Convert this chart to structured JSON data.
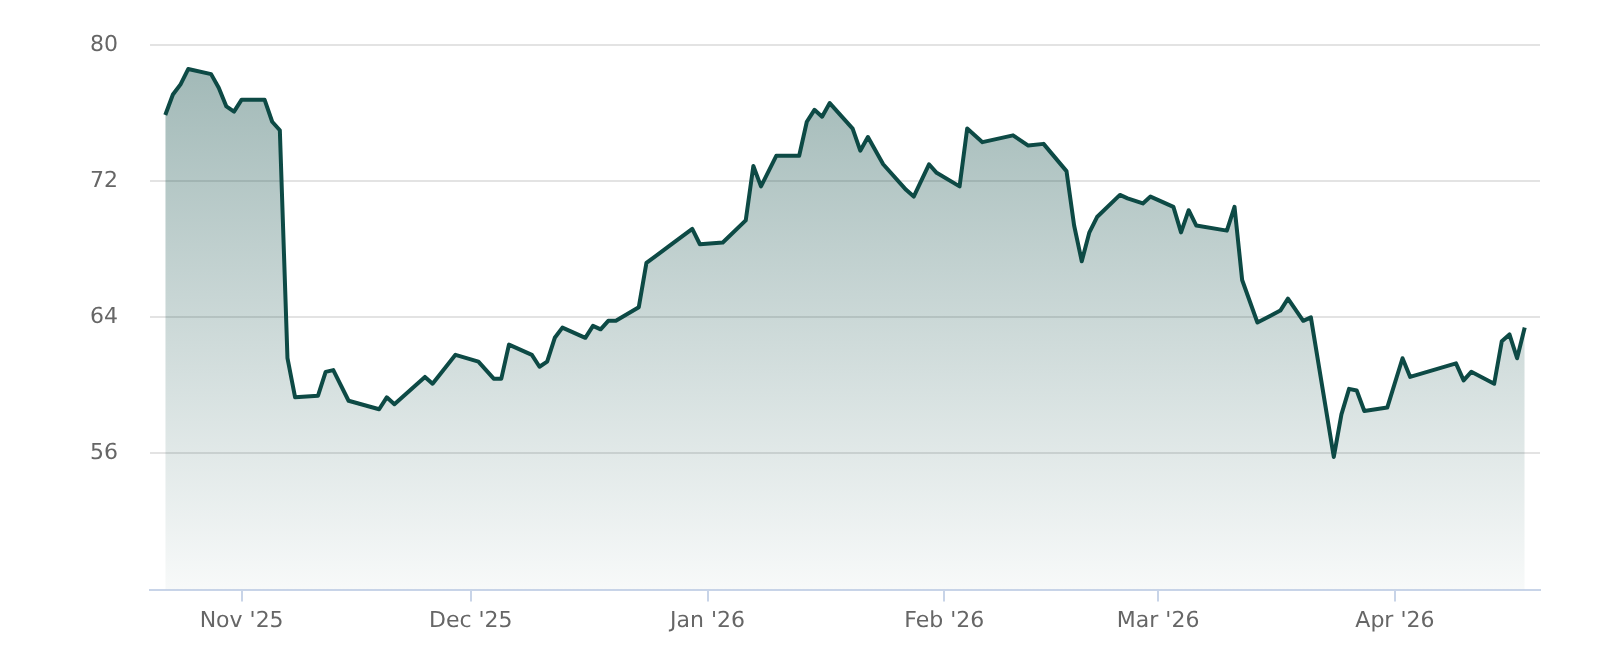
{
  "chart_data": {
    "type": "area",
    "x": [
      "2025-10-22",
      "2025-10-23",
      "2025-10-24",
      "2025-10-25",
      "2025-10-28",
      "2025-10-29",
      "2025-10-30",
      "2025-10-31",
      "2025-11-01",
      "2025-11-04",
      "2025-11-05",
      "2025-11-06",
      "2025-11-07",
      "2025-11-08",
      "2025-11-11",
      "2025-11-12",
      "2025-11-13",
      "2025-11-15",
      "2025-11-19",
      "2025-11-20",
      "2025-11-21",
      "2025-11-25",
      "2025-11-26",
      "2025-11-29",
      "2025-12-02",
      "2025-12-04",
      "2025-12-05",
      "2025-12-06",
      "2025-12-09",
      "2025-12-10",
      "2025-12-11",
      "2025-12-12",
      "2025-12-13",
      "2025-12-16",
      "2025-12-17",
      "2025-12-18",
      "2025-12-19",
      "2025-12-20",
      "2025-12-23",
      "2025-12-24",
      "2025-12-27",
      "2025-12-30",
      "2025-12-31",
      "2026-01-03",
      "2026-01-06",
      "2026-01-07",
      "2026-01-08",
      "2026-01-10",
      "2026-01-13",
      "2026-01-14",
      "2026-01-15",
      "2026-01-16",
      "2026-01-17",
      "2026-01-20",
      "2026-01-21",
      "2026-01-22",
      "2026-01-24",
      "2026-01-27",
      "2026-01-28",
      "2026-01-30",
      "2026-01-31",
      "2026-02-03",
      "2026-02-04",
      "2026-02-06",
      "2026-02-10",
      "2026-02-12",
      "2026-02-14",
      "2026-02-17",
      "2026-02-18",
      "2026-02-19",
      "2026-02-20",
      "2026-02-21",
      "2026-02-24",
      "2026-02-25",
      "2026-02-27",
      "2026-02-28",
      "2026-03-03",
      "2026-03-04",
      "2026-03-05",
      "2026-03-06",
      "2026-03-10",
      "2026-03-11",
      "2026-03-12",
      "2026-03-14",
      "2026-03-17",
      "2026-03-18",
      "2026-03-20",
      "2026-03-21",
      "2026-03-24",
      "2026-03-25",
      "2026-03-26",
      "2026-03-27",
      "2026-03-28",
      "2026-03-31",
      "2026-04-02",
      "2026-04-03",
      "2026-04-09",
      "2026-04-10",
      "2026-04-11",
      "2026-04-14",
      "2026-04-15",
      "2026-04-16",
      "2026-04-17",
      "2026-04-18"
    ],
    "series": [
      {
        "color": "#0d4a45",
        "values": [
          75.9,
          77.1,
          77.7,
          78.6,
          78.3,
          77.5,
          76.4,
          76.1,
          76.8,
          76.8,
          75.5,
          75.0,
          61.6,
          59.3,
          59.4,
          60.8,
          60.9,
          59.1,
          58.6,
          59.3,
          58.9,
          60.5,
          60.1,
          61.8,
          61.4,
          60.4,
          60.4,
          62.4,
          61.8,
          61.1,
          61.4,
          62.8,
          63.4,
          62.8,
          63.5,
          63.3,
          63.8,
          63.8,
          64.6,
          67.2,
          68.2,
          69.2,
          68.3,
          68.4,
          69.7,
          72.9,
          71.7,
          73.5,
          73.5,
          75.5,
          76.2,
          75.8,
          76.6,
          75.1,
          73.8,
          74.6,
          73.0,
          71.5,
          71.1,
          73.0,
          72.5,
          71.7,
          75.1,
          74.3,
          74.7,
          74.1,
          74.2,
          72.6,
          69.4,
          67.3,
          69.0,
          69.9,
          71.2,
          71.0,
          70.7,
          71.1,
          70.5,
          69.0,
          70.3,
          69.4,
          69.1,
          70.5,
          66.2,
          63.7,
          64.4,
          65.1,
          63.8,
          64.0,
          55.8,
          58.3,
          59.8,
          59.7,
          58.5,
          58.7,
          61.6,
          60.5,
          61.3,
          60.3,
          60.8,
          60.1,
          62.6,
          63.0,
          61.6,
          63.4
        ]
      }
    ],
    "xlim": [
      "2025-10-20",
      "2026-04-20"
    ],
    "xticks": [
      {
        "value": "2025-11-01",
        "label": "Nov '25"
      },
      {
        "value": "2025-12-01",
        "label": "Dec '25"
      },
      {
        "value": "2026-01-01",
        "label": "Jan '26"
      },
      {
        "value": "2026-02-01",
        "label": "Feb '26"
      },
      {
        "value": "2026-03-01",
        "label": "Mar '26"
      },
      {
        "value": "2026-04-01",
        "label": "Apr '26"
      }
    ],
    "ylim": [
      48,
      80
    ],
    "yticks": [
      56,
      64,
      72,
      80
    ],
    "grid": "y",
    "marker": "none"
  }
}
